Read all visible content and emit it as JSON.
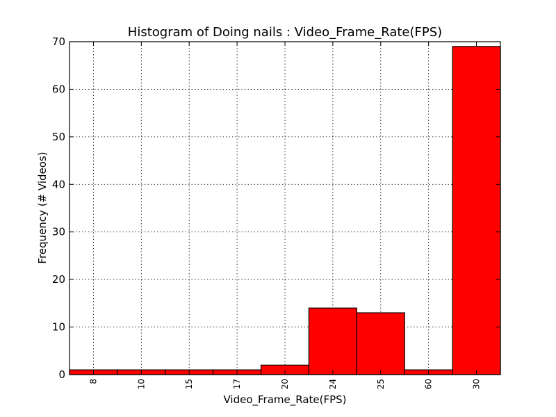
{
  "chart_data": {
    "type": "bar",
    "title": "Histogram of Doing nails : Video_Frame_Rate(FPS)",
    "xlabel": "Video_Frame_Rate(FPS)",
    "ylabel": "Frequency (# Videos)",
    "categories": [
      "8",
      "10",
      "15",
      "17",
      "20",
      "24",
      "25",
      "60",
      "30"
    ],
    "values": [
      1,
      1,
      1,
      1,
      2,
      14,
      13,
      1,
      69
    ],
    "ylim": [
      0,
      70
    ],
    "yticks": [
      "0",
      "10",
      "20",
      "30",
      "40",
      "50",
      "60",
      "70"
    ],
    "grid": true,
    "bar_color": "#ff0000",
    "edge_color": "#000000"
  }
}
